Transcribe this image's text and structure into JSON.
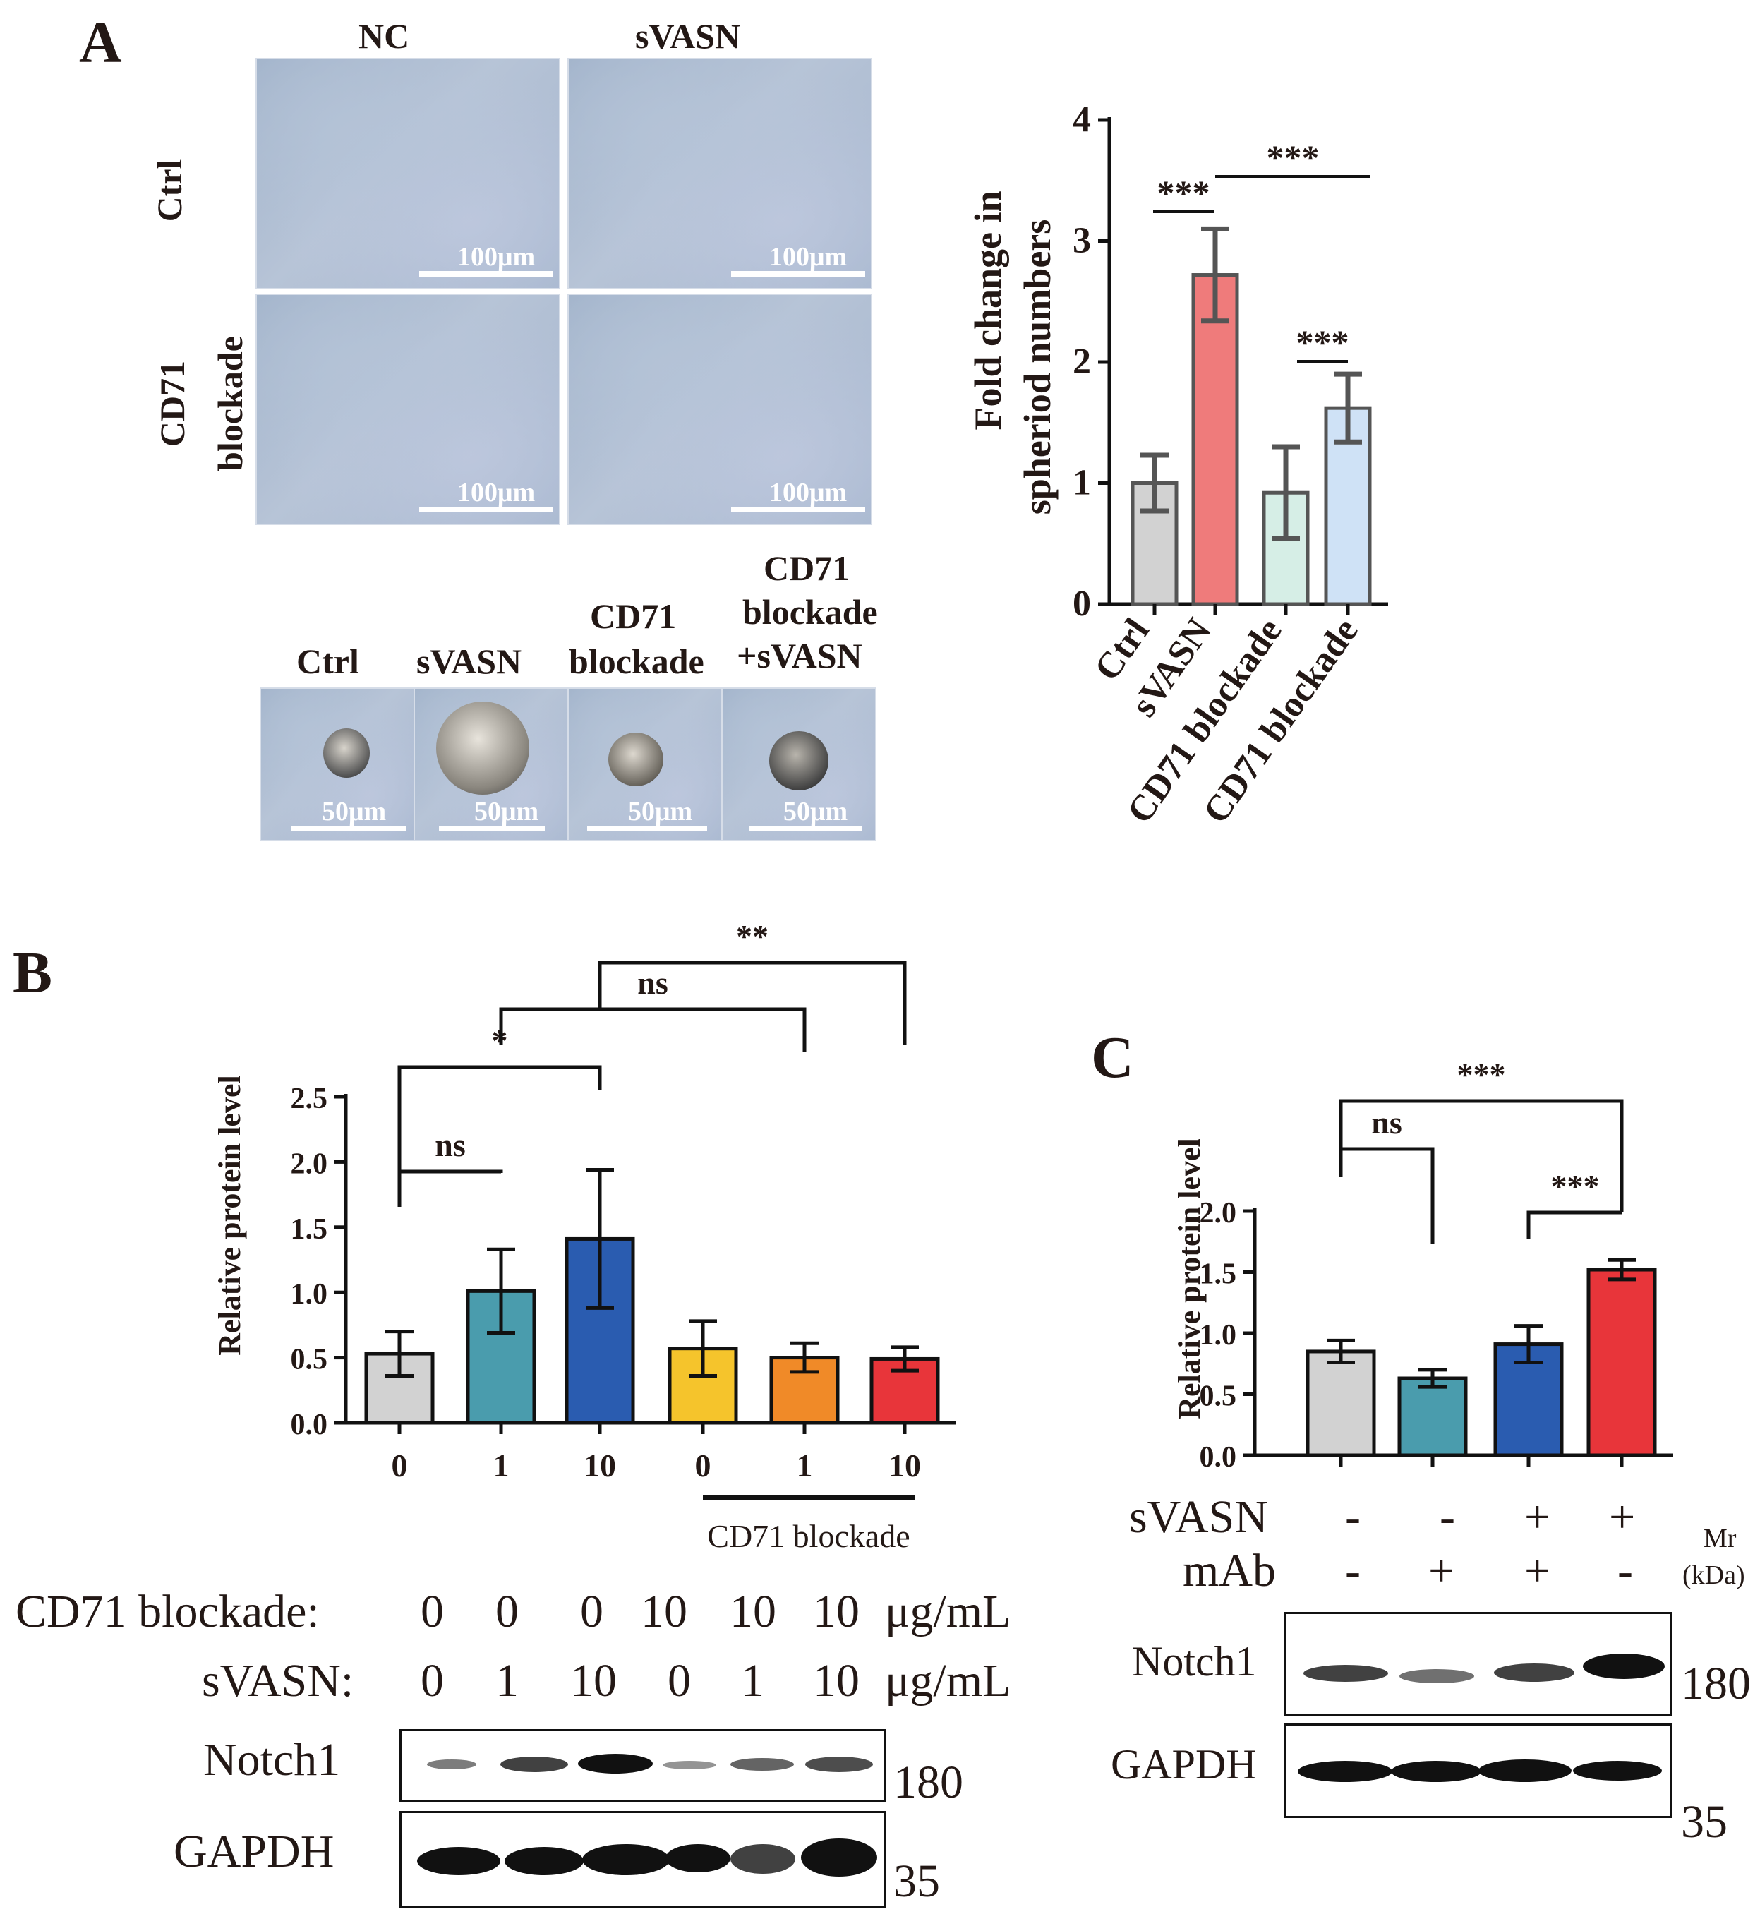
{
  "panel_labels": {
    "a": "A",
    "b": "B",
    "c": "C"
  },
  "panel_a": {
    "micro_cols": [
      "NC",
      "sVASN"
    ],
    "micro_rows": [
      "Ctrl",
      "CD71",
      "blockade"
    ],
    "scale_big": "100μm",
    "scale_small": "50μm",
    "spheroid_labels": [
      "Ctrl",
      "sVASN",
      "CD71",
      "blockade",
      "CD71",
      "blockade",
      "+sVASN"
    ]
  },
  "panel_b_blot": {
    "row1_label": "CD71 blockade:",
    "row1_values": [
      "0",
      "0",
      "0",
      "10",
      "10",
      "10"
    ],
    "row1_unit": "μg/mL",
    "row2_label": "sVASN:",
    "row2_values": [
      "0",
      "1",
      "10",
      "0",
      "1",
      "10"
    ],
    "row2_unit": "μg/mL",
    "band1": "Notch1",
    "band1_mw": "180",
    "band2": "GAPDH",
    "band2_mw": "35"
  },
  "panel_c_blot": {
    "svasn_label": "sVASN",
    "svasn_signs": [
      "-",
      "-",
      "+",
      "+"
    ],
    "mab_label": "mAb",
    "mab_signs": [
      "-",
      "+",
      "+",
      "-"
    ],
    "mr_label": "Mr",
    "kda_label": "(kDa)",
    "band1": "Notch1",
    "band1_mw": "180",
    "band2": "GAPDH",
    "band2_mw": "35"
  },
  "chart_data": [
    {
      "id": "A",
      "type": "bar",
      "ylabel": "Fold change in spheriod numbers",
      "xlabel": "",
      "ylim": [
        0,
        4
      ],
      "yticks": [
        "0",
        "1",
        "2",
        "3",
        "4"
      ],
      "categories": [
        "Ctrl",
        "sVASN",
        "CD71 blockade",
        "CD71 blockade +sVASN"
      ],
      "values": [
        1.0,
        2.72,
        0.92,
        1.62
      ],
      "errors": [
        0.23,
        0.38,
        0.38,
        0.28
      ],
      "colors": [
        "#d2d2d2",
        "#ef7b7b",
        "#d6eee6",
        "#cfe2f6"
      ],
      "significance": [
        {
          "from": 0,
          "to": 1,
          "label": "***"
        },
        {
          "from": 1,
          "to": 3,
          "label": "***"
        },
        {
          "from": 2,
          "to": 3,
          "label": "***"
        }
      ]
    },
    {
      "id": "B",
      "type": "bar",
      "ylabel": "Relative protein level",
      "xlabel": "",
      "ylim": [
        0,
        2.5
      ],
      "yticks": [
        "0.0",
        "0.5",
        "1.0",
        "1.5",
        "2.0",
        "2.5"
      ],
      "categories": [
        "0",
        "1",
        "10",
        "0",
        "1",
        "10"
      ],
      "values": [
        0.53,
        1.01,
        1.41,
        0.57,
        0.5,
        0.49
      ],
      "errors": [
        0.17,
        0.32,
        0.53,
        0.21,
        0.11,
        0.09
      ],
      "colors": [
        "#d2d2d2",
        "#4a9cad",
        "#2a5cb0",
        "#f5c42c",
        "#f08a28",
        "#e8353a"
      ],
      "group_label": "CD71 blockade",
      "significance": [
        {
          "from": 0,
          "to": 1,
          "label": "ns"
        },
        {
          "from": 0,
          "to": 2,
          "label": "*"
        },
        {
          "from": 1,
          "to": 4,
          "label": "ns"
        },
        {
          "from": 2,
          "to": 5,
          "label": "**"
        }
      ]
    },
    {
      "id": "C",
      "type": "bar",
      "ylabel": "Relative protein level",
      "xlabel": "",
      "ylim": [
        0,
        2.0
      ],
      "yticks": [
        "0.0",
        "0.5",
        "1.0",
        "1.5",
        "2.0"
      ],
      "categories": [
        "",
        "",
        "",
        ""
      ],
      "values": [
        0.85,
        0.63,
        0.91,
        1.52
      ],
      "errors": [
        0.09,
        0.07,
        0.15,
        0.08
      ],
      "colors": [
        "#d2d2d2",
        "#4a9cad",
        "#2a5cb0",
        "#e8353a"
      ],
      "significance": [
        {
          "from": 0,
          "to": 1,
          "label": "ns"
        },
        {
          "from": 0,
          "to": 3,
          "label": "***"
        },
        {
          "from": 2,
          "to": 3,
          "label": "***"
        }
      ]
    }
  ]
}
